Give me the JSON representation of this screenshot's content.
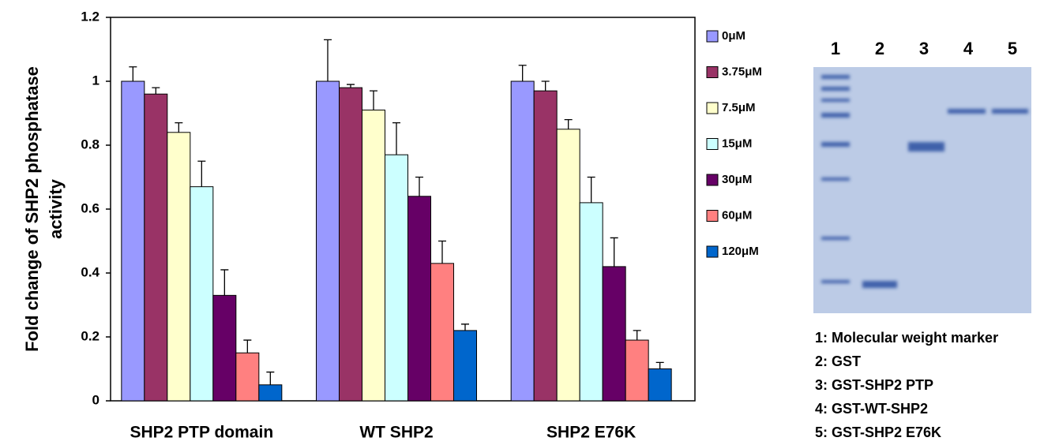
{
  "chart_data": {
    "type": "bar",
    "ylabel": [
      "Fold change of SHP2 phosphatase",
      "activity"
    ],
    "categories": [
      "SHP2 PTP domain",
      "WT SHP2",
      "SHP2 E76K"
    ],
    "series": [
      {
        "name": "0μM",
        "color": "#9999ff",
        "values": [
          1.0,
          1.0,
          1.0
        ],
        "errors": [
          0.045,
          0.13,
          0.05
        ]
      },
      {
        "name": "3.75μM",
        "color": "#993366",
        "values": [
          0.96,
          0.98,
          0.97
        ],
        "errors": [
          0.02,
          0.01,
          0.03
        ]
      },
      {
        "name": "7.5μM",
        "color": "#ffffcc",
        "values": [
          0.84,
          0.91,
          0.85
        ],
        "errors": [
          0.03,
          0.06,
          0.03
        ]
      },
      {
        "name": "15μM",
        "color": "#ccffff",
        "values": [
          0.67,
          0.77,
          0.62
        ],
        "errors": [
          0.08,
          0.1,
          0.08
        ]
      },
      {
        "name": "30μM",
        "color": "#660066",
        "values": [
          0.33,
          0.64,
          0.42
        ],
        "errors": [
          0.08,
          0.06,
          0.09
        ]
      },
      {
        "name": "60μM",
        "color": "#ff8080",
        "values": [
          0.15,
          0.43,
          0.19
        ],
        "errors": [
          0.04,
          0.07,
          0.03
        ]
      },
      {
        "name": "120μM",
        "color": "#0066cc",
        "values": [
          0.05,
          0.22,
          0.1
        ],
        "errors": [
          0.04,
          0.02,
          0.02
        ]
      }
    ],
    "ylim": [
      0,
      1.2
    ],
    "yticks": [
      0,
      0.2,
      0.4,
      0.6,
      0.8,
      1,
      1.2
    ],
    "grid": false
  },
  "gel": {
    "lane_labels": [
      "1",
      "2",
      "3",
      "4",
      "5"
    ],
    "key": [
      "1: Molecular weight marker",
      "2: GST",
      "3: GST-SHP2 PTP",
      "4: GST-WT-SHP2",
      "5: GST-SHP2 E76K"
    ]
  }
}
